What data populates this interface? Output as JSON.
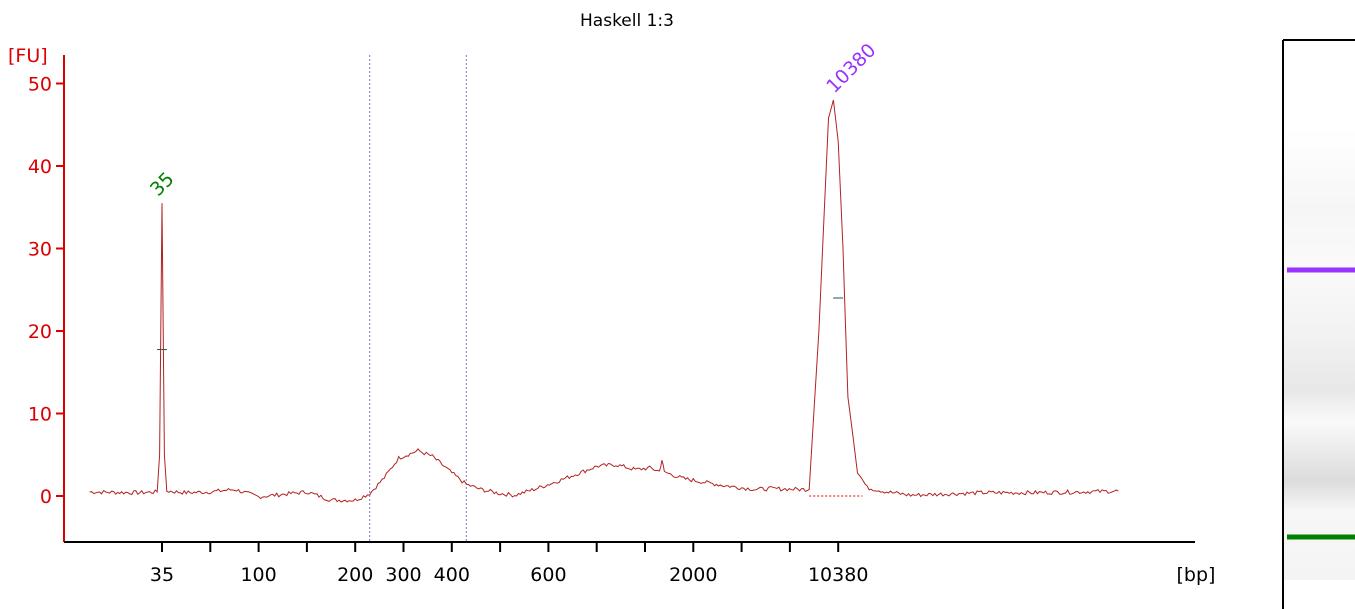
{
  "chart_data": {
    "type": "line",
    "title": "Haskell 1:3",
    "ylabel": "[FU]",
    "xlabel": "[bp]",
    "ylim": [
      -5,
      50
    ],
    "y_ticks": [
      0,
      10,
      20,
      30,
      40,
      50
    ],
    "x_ticks": [
      {
        "label": "35",
        "pos": 0
      },
      {
        "label": "",
        "pos": 1
      },
      {
        "label": "100",
        "pos": 2
      },
      {
        "label": "",
        "pos": 3
      },
      {
        "label": "200",
        "pos": 4
      },
      {
        "label": "300",
        "pos": 5
      },
      {
        "label": "400",
        "pos": 6
      },
      {
        "label": "",
        "pos": 7
      },
      {
        "label": "600",
        "pos": 8
      },
      {
        "label": "",
        "pos": 9
      },
      {
        "label": "",
        "pos": 10
      },
      {
        "label": "2000",
        "pos": 11
      },
      {
        "label": "",
        "pos": 12
      },
      {
        "label": "",
        "pos": 13
      },
      {
        "label": "10380",
        "pos": 14
      }
    ],
    "region_markers": [
      4.3,
      6.3
    ],
    "peaks": [
      {
        "label": "35",
        "pos": 0,
        "height": 35.5,
        "color": "#008000"
      },
      {
        "label": "10380",
        "pos": 14,
        "height": 48,
        "color": "#9933ff"
      }
    ],
    "series": [
      {
        "color": "#b22222",
        "points": [
          [
            -1.5,
            0.5
          ],
          [
            -0.5,
            0.4
          ],
          [
            -0.1,
            0.5
          ],
          [
            -0.05,
            5
          ],
          [
            0,
            35.5
          ],
          [
            0.05,
            5
          ],
          [
            0.1,
            0.6
          ],
          [
            0.5,
            0.4
          ],
          [
            1.0,
            0.5
          ],
          [
            1.5,
            0.8
          ],
          [
            2.0,
            -0.1
          ],
          [
            2.5,
            0.2
          ],
          [
            3.0,
            0.5
          ],
          [
            3.5,
            -0.5
          ],
          [
            4.0,
            -0.5
          ],
          [
            4.3,
            0.3
          ],
          [
            4.6,
            2.2
          ],
          [
            4.9,
            4.6
          ],
          [
            5.3,
            5.5
          ],
          [
            5.6,
            4.8
          ],
          [
            6.0,
            2.8
          ],
          [
            6.3,
            1.4
          ],
          [
            6.6,
            0.8
          ],
          [
            7.0,
            0.3
          ],
          [
            7.3,
            0.1
          ],
          [
            7.7,
            0.8
          ],
          [
            8.1,
            1.6
          ],
          [
            8.6,
            2.7
          ],
          [
            9.0,
            3.6
          ],
          [
            9.4,
            3.8
          ],
          [
            9.8,
            3.2
          ],
          [
            10.1,
            3.4
          ],
          [
            10.3,
            3.0
          ],
          [
            10.35,
            4.4
          ],
          [
            10.4,
            2.9
          ],
          [
            10.8,
            2.1
          ],
          [
            11.2,
            1.7
          ],
          [
            11.6,
            1.3
          ],
          [
            12.0,
            1.0
          ],
          [
            12.3,
            0.8
          ],
          [
            12.6,
            0.9
          ],
          [
            13.2,
            0.8
          ],
          [
            13.4,
            0.8
          ],
          [
            13.6,
            20
          ],
          [
            13.8,
            46
          ],
          [
            13.9,
            48
          ],
          [
            14.0,
            43
          ],
          [
            14.1,
            30
          ],
          [
            14.2,
            12
          ],
          [
            14.4,
            3
          ],
          [
            14.6,
            1.0
          ],
          [
            15.0,
            0.5
          ],
          [
            15.5,
            0.1
          ],
          [
            16.0,
            0.2
          ],
          [
            17.0,
            0.4
          ],
          [
            18.0,
            0.4
          ],
          [
            19.0,
            0.5
          ],
          [
            19.8,
            0.6
          ]
        ]
      }
    ],
    "gel_lane": {
      "bands": [
        {
          "color": "#9933ff",
          "pos": 0.48
        },
        {
          "color": "#008000",
          "pos": 1.0
        }
      ]
    }
  }
}
